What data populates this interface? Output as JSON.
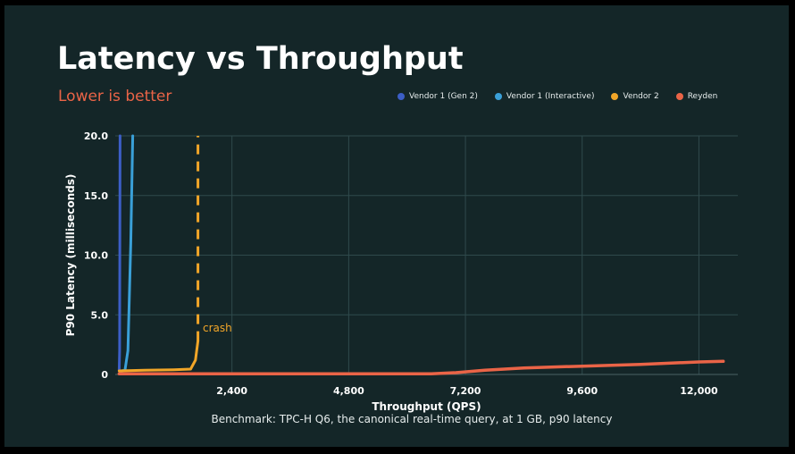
{
  "title": "Latency vs Throughput",
  "subtitle": "Lower is better",
  "caption": "Benchmark: TPC-H Q6, the canonical real-time query, at 1 GB, p90 latency",
  "colors": {
    "background": "#142628",
    "grid": "#2f4a4c",
    "accent": "#ea6447"
  },
  "chart_data": {
    "type": "line",
    "xlabel": "Throughput (QPS)",
    "ylabel": "P90 Latency (milliseconds)",
    "xlim": [
      0,
      12800
    ],
    "ylim": [
      0,
      20
    ],
    "x_ticks": [
      2400,
      4800,
      7200,
      9600,
      12000
    ],
    "x_tick_labels": [
      "2,400",
      "4,800",
      "7,200",
      "9,600",
      "12,000"
    ],
    "y_ticks": [
      0,
      5,
      10,
      15,
      20
    ],
    "y_tick_labels": [
      "0",
      "5.0",
      "10.0",
      "15.0",
      "20.0"
    ],
    "grid": true,
    "legend_position": "top-right",
    "series": [
      {
        "name": "Vendor 1 (Gen 2)",
        "color": "#3c5ec6",
        "dashed": false,
        "points": [
          [
            80,
            0.3
          ],
          [
            90,
            2
          ],
          [
            100,
            20
          ]
        ]
      },
      {
        "name": "Vendor 1 (Interactive)",
        "color": "#3aa0d8",
        "dashed": false,
        "points": [
          [
            120,
            0.3
          ],
          [
            200,
            0.35
          ],
          [
            260,
            2
          ],
          [
            320,
            11
          ],
          [
            360,
            20
          ]
        ]
      },
      {
        "name": "Vendor 2",
        "color": "#f2a628",
        "dashed": false,
        "points": [
          [
            80,
            0.3
          ],
          [
            600,
            0.35
          ],
          [
            1200,
            0.4
          ],
          [
            1550,
            0.45
          ],
          [
            1650,
            1.2
          ],
          [
            1700,
            2.8
          ]
        ]
      },
      {
        "name": "crash",
        "color": "#f2a628",
        "dashed": true,
        "points": [
          [
            1700,
            2.8
          ],
          [
            1700,
            20
          ]
        ]
      },
      {
        "name": "Reyden",
        "color": "#ea6447",
        "dashed": false,
        "points": [
          [
            80,
            0.05
          ],
          [
            1200,
            0.05
          ],
          [
            2400,
            0.05
          ],
          [
            4800,
            0.05
          ],
          [
            6500,
            0.05
          ],
          [
            7000,
            0.15
          ],
          [
            7600,
            0.35
          ],
          [
            8400,
            0.55
          ],
          [
            9600,
            0.7
          ],
          [
            10800,
            0.85
          ],
          [
            12000,
            1.05
          ],
          [
            12500,
            1.1
          ]
        ]
      }
    ],
    "annotations": [
      {
        "text": "crash",
        "x": 1800,
        "y": 3.9,
        "color": "#f2a628"
      }
    ]
  },
  "legend": [
    {
      "label": "Vendor 1 (Gen 2)",
      "color": "#3c5ec6"
    },
    {
      "label": "Vendor 1 (Interactive)",
      "color": "#3aa0d8"
    },
    {
      "label": "Vendor 2",
      "color": "#f2a628"
    },
    {
      "label": "Reyden",
      "color": "#ea6447"
    }
  ]
}
